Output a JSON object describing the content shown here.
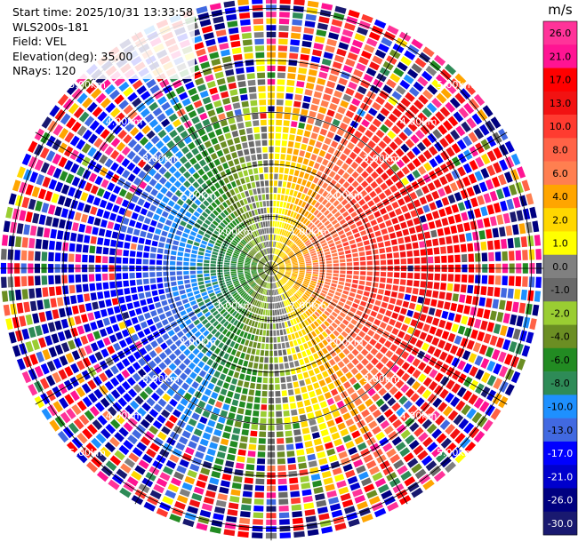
{
  "info": {
    "start_time": "Start time: 2025/10/31 13:33:58",
    "device": "WLS200s-181",
    "field": "Field: VEL",
    "elevation": "Elevation(deg): 35.00",
    "nrays": "NRays: 120"
  },
  "chart_data": {
    "type": "heatmap",
    "projection": "polar-ppi",
    "field": "VEL",
    "units": "m/s",
    "nrays": 120,
    "range_ring_labels": [
      "1.00km",
      "2.00km",
      "3.00km",
      "4.00km",
      "5.00km"
    ],
    "max_range_km": 5.2,
    "colorbar": {
      "title": "m/s",
      "tick_labels": [
        "26.0",
        "21.0",
        "17.0",
        "13.0",
        "10.0",
        "8.0",
        "6.0",
        "4.0",
        "2.0",
        "1.0",
        "0.0",
        "-1.0",
        "-2.0",
        "-4.0",
        "-6.0",
        "-8.0",
        "-10.0",
        "-13.0",
        "-17.0",
        "-21.0",
        "-26.0",
        "-30.0"
      ],
      "bins": [
        {
          "min": 26,
          "max": 30,
          "color": "#ff3399"
        },
        {
          "min": 21,
          "max": 26,
          "color": "#ff1493"
        },
        {
          "min": 17,
          "max": 21,
          "color": "#ff0000"
        },
        {
          "min": 13,
          "max": 17,
          "color": "#f21212"
        },
        {
          "min": 10,
          "max": 13,
          "color": "#ff3b30"
        },
        {
          "min": 8,
          "max": 10,
          "color": "#ff6347"
        },
        {
          "min": 6,
          "max": 8,
          "color": "#ff7f50"
        },
        {
          "min": 4,
          "max": 6,
          "color": "#ffa500"
        },
        {
          "min": 2,
          "max": 4,
          "color": "#ffd700"
        },
        {
          "min": 1,
          "max": 2,
          "color": "#ffff00"
        },
        {
          "min": 0,
          "max": 1,
          "color": "#808080"
        },
        {
          "min": -1,
          "max": 0,
          "color": "#696969"
        },
        {
          "min": -2,
          "max": -1,
          "color": "#9acd32"
        },
        {
          "min": -4,
          "max": -2,
          "color": "#6b8e23"
        },
        {
          "min": -6,
          "max": -4,
          "color": "#228b22"
        },
        {
          "min": -8,
          "max": -6,
          "color": "#2e8b57"
        },
        {
          "min": -10,
          "max": -8,
          "color": "#1e90ff"
        },
        {
          "min": -13,
          "max": -10,
          "color": "#4169e1"
        },
        {
          "min": -17,
          "max": -13,
          "color": "#0000ff"
        },
        {
          "min": -21,
          "max": -17,
          "color": "#0000cd"
        },
        {
          "min": -26,
          "max": -21,
          "color": "#000080"
        },
        {
          "min": -30,
          "max": -26,
          "color": "#191970"
        }
      ]
    }
  }
}
